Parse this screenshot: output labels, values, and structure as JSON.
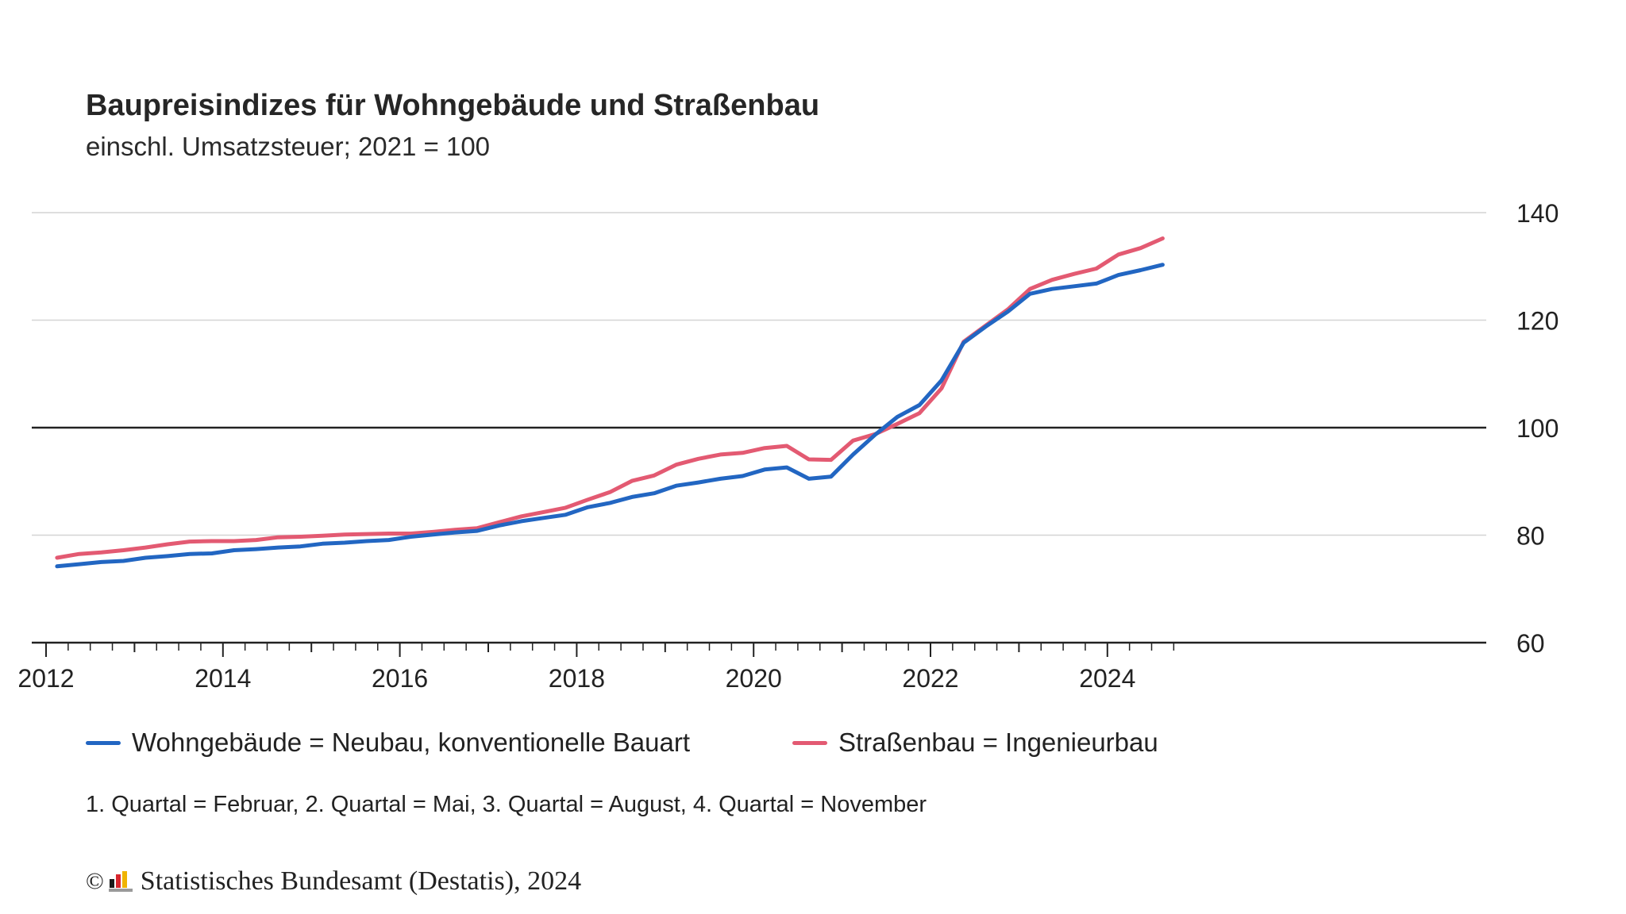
{
  "colors": {
    "wohn": "#2266c2",
    "strasse": "#e35a72",
    "grid": "#d4d4d4",
    "axis": "#222222"
  },
  "chart_data": {
    "type": "line",
    "title": "Baupreisindizes für Wohngebäude und Straßenbau",
    "subtitle": "einschl. Umsatzsteuer; 2021 = 100",
    "ylim": [
      60,
      140
    ],
    "yticks": [
      60,
      80,
      100,
      120,
      140
    ],
    "xlim": [
      2012.0,
      2024.75
    ],
    "xticks": [
      2012,
      2014,
      2016,
      2018,
      2020,
      2022,
      2024
    ],
    "y_axis_side": "right",
    "reference_line": 100,
    "grid": true,
    "legend_position": "bottom",
    "x": [
      2012.125,
      2012.375,
      2012.625,
      2012.875,
      2013.125,
      2013.375,
      2013.625,
      2013.875,
      2014.125,
      2014.375,
      2014.625,
      2014.875,
      2015.125,
      2015.375,
      2015.625,
      2015.875,
      2016.125,
      2016.375,
      2016.625,
      2016.875,
      2017.125,
      2017.375,
      2017.625,
      2017.875,
      2018.125,
      2018.375,
      2018.625,
      2018.875,
      2019.125,
      2019.375,
      2019.625,
      2019.875,
      2020.125,
      2020.375,
      2020.625,
      2020.875,
      2021.125,
      2021.375,
      2021.625,
      2021.875,
      2022.125,
      2022.375,
      2022.625,
      2022.875,
      2023.125,
      2023.375,
      2023.625,
      2023.875,
      2024.125,
      2024.375,
      2024.625
    ],
    "series": [
      {
        "name": "Wohngebäude = Neubau, konventionelle Bauart",
        "values": [
          74.2,
          74.6,
          75.0,
          75.2,
          75.8,
          76.1,
          76.5,
          76.6,
          77.2,
          77.4,
          77.7,
          77.9,
          78.4,
          78.6,
          78.9,
          79.1,
          79.7,
          80.1,
          80.5,
          80.8,
          81.8,
          82.6,
          83.2,
          83.8,
          85.2,
          86.0,
          87.1,
          87.8,
          89.2,
          89.8,
          90.5,
          91.0,
          92.2,
          92.6,
          90.5,
          90.9,
          95.0,
          98.7,
          102.0,
          104.2,
          108.8,
          115.8,
          118.8,
          121.6,
          124.9,
          125.8,
          126.3,
          126.8,
          128.4,
          129.3,
          130.3
        ]
      },
      {
        "name": "Straßenbau = Ingenieurbau",
        "values": [
          75.8,
          76.5,
          76.8,
          77.2,
          77.7,
          78.3,
          78.8,
          78.9,
          78.9,
          79.1,
          79.6,
          79.7,
          79.9,
          80.1,
          80.2,
          80.3,
          80.3,
          80.6,
          81.0,
          81.3,
          82.4,
          83.5,
          84.3,
          85.1,
          86.6,
          88.0,
          90.1,
          91.1,
          93.1,
          94.2,
          95.0,
          95.3,
          96.2,
          96.6,
          94.1,
          94.0,
          97.6,
          98.8,
          100.7,
          102.7,
          107.3,
          116.0,
          119.0,
          122.0,
          125.8,
          127.5,
          128.6,
          129.6,
          132.2,
          133.4,
          135.2
        ]
      }
    ]
  },
  "note": "1. Quartal = Februar, 2. Quartal = Mai, 3. Quartal = August, 4. Quartal = November",
  "source": {
    "copyright": "©",
    "text": "Statistisches Bundesamt (Destatis), 2024"
  }
}
